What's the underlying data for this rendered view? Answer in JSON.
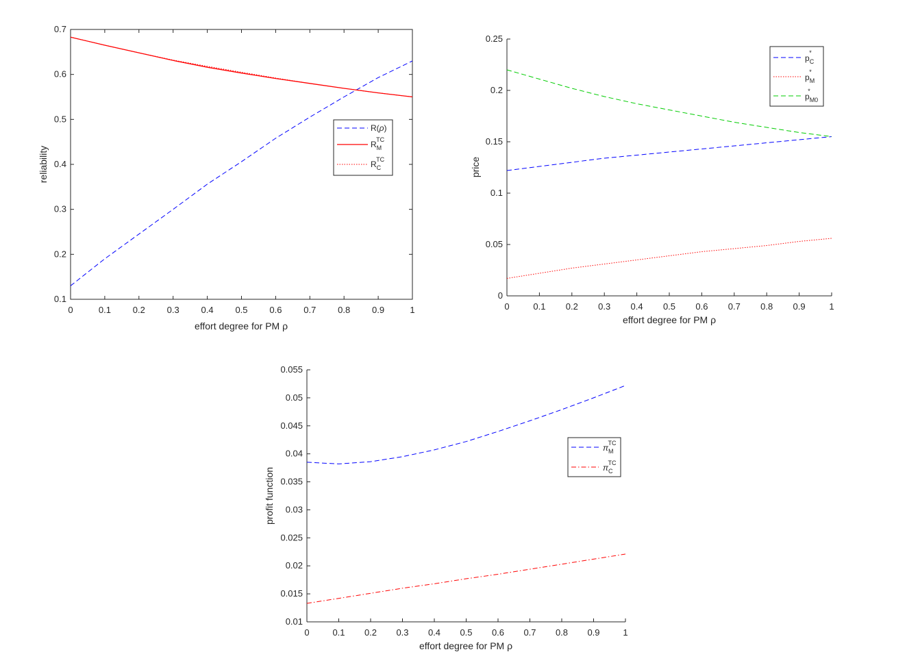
{
  "colors": {
    "blue": "#0000ff",
    "red": "#ff0000",
    "green": "#00cc00",
    "axis": "#262626"
  },
  "chart_data": [
    {
      "type": "line",
      "xlabel": "effort degree for PM ρ",
      "ylabel": "reliability",
      "xlim": [
        0,
        1
      ],
      "ylim": [
        0.1,
        0.7
      ],
      "xticks": [
        "0",
        "0.1",
        "0.2",
        "0.3",
        "0.4",
        "0.5",
        "0.6",
        "0.7",
        "0.8",
        "0.9",
        "1"
      ],
      "yticks": [
        "0.1",
        "0.2",
        "0.3",
        "0.4",
        "0.5",
        "0.6",
        "0.7"
      ],
      "legend_position": "right",
      "x": [
        0,
        0.1,
        0.2,
        0.3,
        0.4,
        0.5,
        0.6,
        0.7,
        0.8,
        0.9,
        1
      ],
      "series": [
        {
          "name": "R(ρ)",
          "style": "dashed",
          "color": "#0000ff",
          "values": [
            0.13,
            0.19,
            0.245,
            0.3,
            0.356,
            0.406,
            0.458,
            0.505,
            0.55,
            0.593,
            0.63
          ]
        },
        {
          "name": "R_M^TC",
          "style": "solid",
          "color": "#ff0000",
          "values": [
            0.683,
            0.665,
            0.648,
            0.631,
            0.616,
            0.603,
            0.591,
            0.58,
            0.569,
            0.559,
            0.55
          ]
        },
        {
          "name": "R_C^TC",
          "style": "dotted",
          "color": "#ff0000",
          "values": [
            0.683,
            0.665,
            0.648,
            0.632,
            0.618,
            0.605,
            0.592,
            0.58,
            0.569,
            0.559,
            0.55
          ]
        }
      ]
    },
    {
      "type": "line",
      "xlabel": "effort degree for PM ρ",
      "ylabel": "price",
      "xlim": [
        0,
        1
      ],
      "ylim": [
        0,
        0.25
      ],
      "xticks": [
        "0",
        "0.1",
        "0.2",
        "0.3",
        "0.4",
        "0.5",
        "0.6",
        "0.7",
        "0.8",
        "0.9",
        "1"
      ],
      "yticks": [
        "0",
        "0.05",
        "0.1",
        "0.15",
        "0.2",
        "0.25"
      ],
      "legend_position": "top-right",
      "x": [
        0,
        0.1,
        0.2,
        0.3,
        0.4,
        0.5,
        0.6,
        0.7,
        0.8,
        0.9,
        1
      ],
      "series": [
        {
          "name": "p_C^*",
          "style": "dashed",
          "color": "#0000ff",
          "values": [
            0.122,
            0.126,
            0.13,
            0.134,
            0.137,
            0.14,
            0.143,
            0.146,
            0.149,
            0.152,
            0.155
          ]
        },
        {
          "name": "p_M^*",
          "style": "dotted",
          "color": "#ff0000",
          "values": [
            0.017,
            0.022,
            0.027,
            0.031,
            0.035,
            0.039,
            0.043,
            0.046,
            0.049,
            0.053,
            0.056
          ]
        },
        {
          "name": "p_M0^*",
          "style": "dashed",
          "color": "#00cc00",
          "values": [
            0.22,
            0.211,
            0.202,
            0.194,
            0.187,
            0.181,
            0.175,
            0.169,
            0.164,
            0.159,
            0.155
          ]
        }
      ]
    },
    {
      "type": "line",
      "xlabel": "effort degree for PM ρ",
      "ylabel": "profit function",
      "xlim": [
        0,
        1
      ],
      "ylim": [
        0.01,
        0.055
      ],
      "xticks": [
        "0",
        "0.1",
        "0.2",
        "0.3",
        "0.4",
        "0.5",
        "0.6",
        "0.7",
        "0.8",
        "0.9",
        "1"
      ],
      "yticks": [
        "0.01",
        "0.015",
        "0.02",
        "0.025",
        "0.03",
        "0.035",
        "0.04",
        "0.045",
        "0.05",
        "0.055"
      ],
      "legend_position": "right",
      "x": [
        0,
        0.1,
        0.2,
        0.3,
        0.4,
        0.5,
        0.6,
        0.7,
        0.8,
        0.9,
        1
      ],
      "series": [
        {
          "name": "π_M^TC",
          "style": "dashed",
          "color": "#0000ff",
          "values": [
            0.0385,
            0.0382,
            0.0386,
            0.0395,
            0.0407,
            0.0422,
            0.044,
            0.0459,
            0.0479,
            0.05,
            0.0522
          ]
        },
        {
          "name": "π_C^TC",
          "style": "dashdot",
          "color": "#ff0000",
          "values": [
            0.0133,
            0.0142,
            0.0151,
            0.016,
            0.0168,
            0.0177,
            0.0185,
            0.0194,
            0.0203,
            0.0212,
            0.0221
          ]
        }
      ]
    }
  ]
}
